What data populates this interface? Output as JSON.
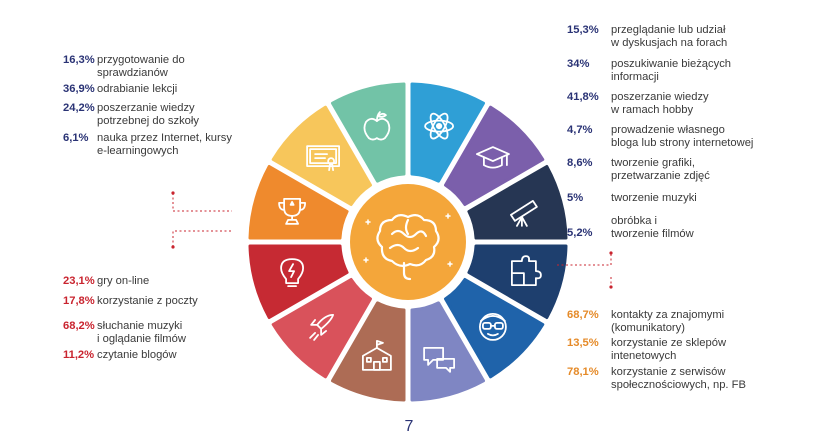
{
  "groups": {
    "school": {
      "items": [
        {
          "value": "16,3%",
          "label_lines": [
            "przygotowanie do",
            "sprawdzianów"
          ]
        },
        {
          "value": "36,9%",
          "label_lines": [
            "odrabianie lekcji"
          ]
        },
        {
          "value": "24,2%",
          "label_lines": [
            "poszerzanie wiedzy",
            "potrzebnej do szkoły"
          ]
        },
        {
          "value": "6,1%",
          "label_lines": [
            "nauka przez Internet, kursy",
            "e-learningowych"
          ]
        }
      ]
    },
    "interests": {
      "items": [
        {
          "value": "15,3%",
          "label_lines": [
            "przeglądanie lub udział",
            "w dyskusjach na forach"
          ]
        },
        {
          "value": "34%",
          "label_lines": [
            "poszukiwanie bieżących",
            "informacji"
          ]
        },
        {
          "value": "41,8%",
          "label_lines": [
            "poszerzanie wiedzy",
            "w ramach hobby"
          ]
        },
        {
          "value": "4,7%",
          "label_lines": [
            "prowadzenie własnego",
            "bloga lub strony internetowej"
          ]
        },
        {
          "value": "8,6%",
          "label_lines": [
            "tworzenie grafiki,",
            "przetwarzanie zdjęć"
          ]
        },
        {
          "value": "5%",
          "label_lines": [
            "tworzenie muzyki"
          ]
        },
        {
          "value": "5,2%",
          "label_lines": [
            "obróbka i",
            "tworzenie filmów"
          ]
        }
      ]
    },
    "entertainment": {
      "items": [
        {
          "value": "23,1%",
          "label_lines": [
            "gry on-line"
          ]
        },
        {
          "value": "17,8%",
          "label_lines": [
            "korzystanie z poczty"
          ]
        },
        {
          "value": "68,2%",
          "label_lines": [
            "słuchanie muzyki",
            "i oglądanie filmów"
          ]
        },
        {
          "value": "11,2%",
          "label_lines": [
            "czytanie blogów"
          ]
        }
      ]
    },
    "social": {
      "items": [
        {
          "value": "68,7%",
          "label_lines": [
            "kontakty za znajomymi",
            "(komunikatory)"
          ]
        },
        {
          "value": "13,5%",
          "label_lines": [
            "korzystanie ze sklepów",
            "intenetowych"
          ]
        },
        {
          "value": "78,1%",
          "label_lines": [
            "korzystanie z serwisów",
            "społecznościowych, np. FB"
          ]
        }
      ]
    }
  },
  "wheel": {
    "segments": [
      {
        "icon": "atom-icon",
        "color": "#2f9fd6"
      },
      {
        "icon": "graduation-cap-icon",
        "color": "#7b5fab"
      },
      {
        "icon": "telescope-icon",
        "color": "#263653"
      },
      {
        "icon": "puzzle-icon",
        "color": "#1e3f6e"
      },
      {
        "icon": "nerd-face-icon",
        "color": "#1f63aa"
      },
      {
        "icon": "chat-bubbles-icon",
        "color": "#7f86c3"
      },
      {
        "icon": "school-building-icon",
        "color": "#ad6c55"
      },
      {
        "icon": "rocket-icon",
        "color": "#d9525b"
      },
      {
        "icon": "lightbulb-icon",
        "color": "#c62a33"
      },
      {
        "icon": "trophy-icon",
        "color": "#ef8a2d"
      },
      {
        "icon": "certificate-icon",
        "color": "#f7c65b"
      },
      {
        "icon": "apple-icon",
        "color": "#72c3a7"
      }
    ],
    "center": {
      "icon": "brain-icon",
      "color": "#f4a63a"
    }
  },
  "page_number": "7"
}
